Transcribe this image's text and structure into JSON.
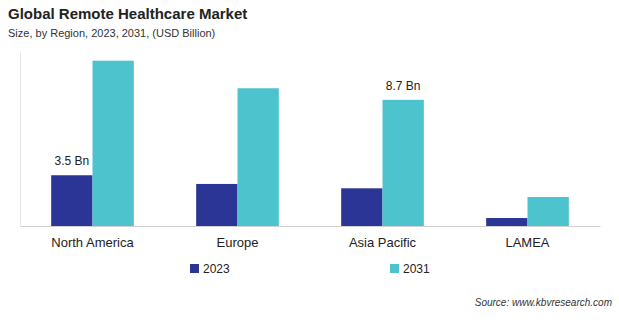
{
  "chart_data": {
    "type": "bar",
    "title": "Global Remote Healthcare Market",
    "subtitle": "Size, by Region, 2023, 2031, (USD Billion)",
    "categories": [
      "North America",
      "Europe",
      "Asia Pacific",
      "LAMEA"
    ],
    "series": [
      {
        "name": "2023",
        "color": "#2b3595",
        "values": [
          3.5,
          2.9,
          2.6,
          0.55
        ],
        "value_labels": [
          "3.5 Bn",
          null,
          null,
          null
        ]
      },
      {
        "name": "2031",
        "color": "#4dc3ce",
        "values": [
          11.4,
          9.5,
          8.7,
          2.0
        ],
        "value_labels": [
          null,
          null,
          "8.7 Bn",
          null
        ]
      }
    ],
    "ylim": [
      0,
      12
    ],
    "yticks": [],
    "tick_labels": "x",
    "data_labels": true,
    "legend": "bottom",
    "source": "Source: www.kbvresearch.com"
  }
}
